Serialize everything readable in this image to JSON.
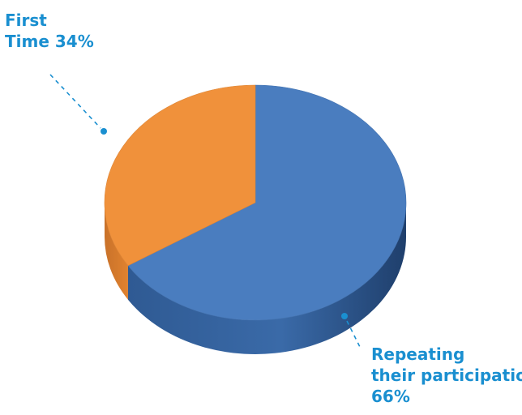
{
  "chart_data": {
    "type": "pie",
    "title": "",
    "slices": [
      {
        "name": "Repeating their participation",
        "value": 66,
        "label_lines": [
          "Repeating",
          "their participation",
          "66%"
        ],
        "color": "#4a7dbf"
      },
      {
        "name": "First Time",
        "value": 34,
        "label_lines": [
          "First",
          "Time 34%"
        ],
        "color": "#f0913b"
      }
    ],
    "label_color": "#1a8fd0",
    "style": "3d"
  }
}
